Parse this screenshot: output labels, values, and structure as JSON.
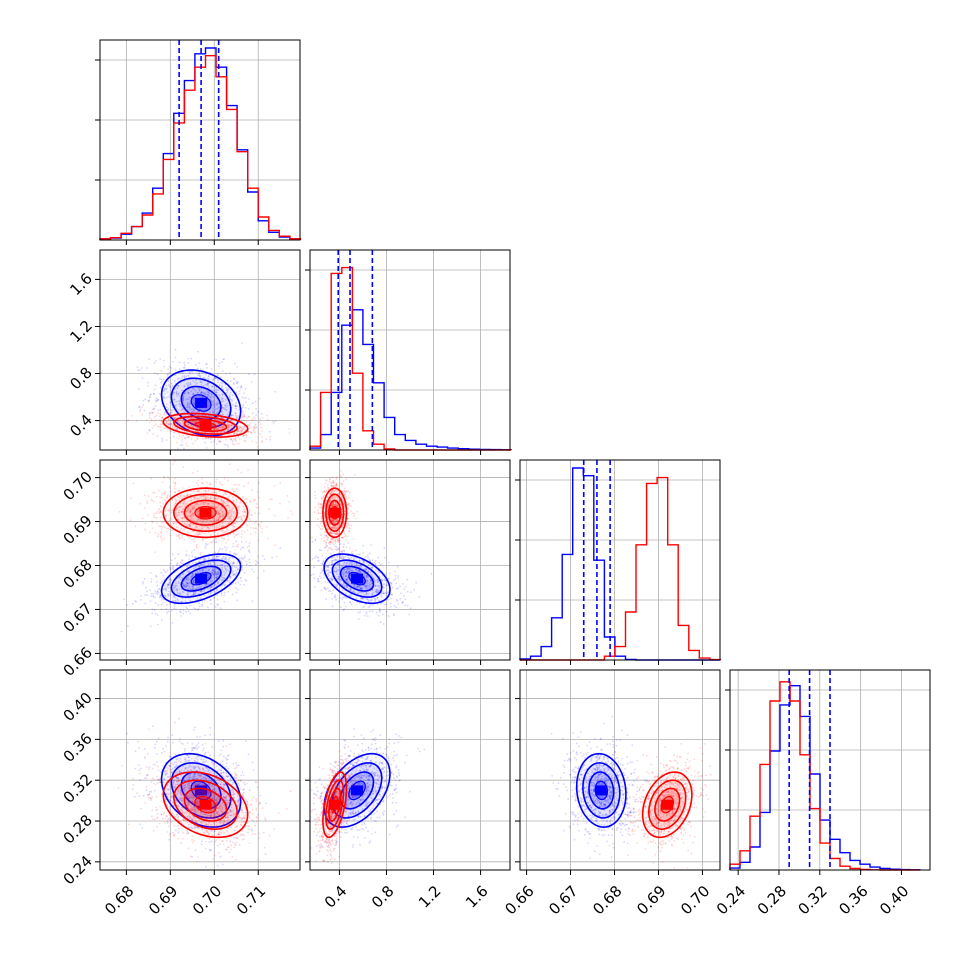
{
  "chart_data": {
    "type": "corner",
    "parameters": 4,
    "grid": true,
    "colors": {
      "series_a": "#0000ff",
      "series_b": "#ff0000",
      "grid": "#b0b0b0"
    },
    "series": [
      {
        "color": "#0000ff",
        "means": [
          0.697,
          0.55,
          0.677,
          0.31
        ],
        "sigmas": [
          0.0045,
          0.14,
          0.0028,
          0.018
        ],
        "correlations": [
          [
            0,
            1,
            -0.25
          ],
          [
            0,
            2,
            0.5
          ],
          [
            0,
            3,
            -0.3
          ],
          [
            1,
            2,
            -0.45
          ],
          [
            1,
            3,
            0.45
          ],
          [
            2,
            3,
            -0.1
          ]
        ],
        "quantiles": [
          [
            0.692,
            0.697,
            0.701
          ],
          [
            0.39,
            0.49,
            0.68
          ],
          [
            0.673,
            0.676,
            0.679
          ],
          [
            0.29,
            0.31,
            0.33
          ]
        ]
      },
      {
        "color": "#ff0000",
        "means": [
          0.698,
          0.36,
          0.692,
          0.296
        ],
        "sigmas": [
          0.0048,
          0.05,
          0.0028,
          0.016
        ],
        "correlations": [
          [
            0,
            1,
            -0.3
          ],
          [
            0,
            2,
            0.0
          ],
          [
            0,
            3,
            -0.3
          ],
          [
            1,
            2,
            0.0
          ],
          [
            1,
            3,
            0.5
          ],
          [
            2,
            3,
            0.3
          ]
        ]
      }
    ],
    "axis_ranges": [
      [
        0.674,
        0.7195
      ],
      [
        0.15,
        1.85
      ],
      [
        0.6585,
        0.704
      ],
      [
        0.232,
        0.428
      ]
    ],
    "ticks": [
      {
        "values": [
          0.68,
          0.69,
          0.7,
          0.71
        ],
        "labels": [
          "0.68",
          "0.69",
          "0.70",
          "0.71"
        ]
      },
      {
        "values": [
          0.4,
          0.8,
          1.2,
          1.6
        ],
        "labels": [
          "0.4",
          "0.8",
          "1.2",
          "1.6"
        ]
      },
      {
        "values": [
          0.66,
          0.67,
          0.68,
          0.69,
          0.7
        ],
        "labels": [
          "0.66",
          "0.67",
          "0.68",
          "0.69",
          "0.70"
        ]
      },
      {
        "values": [
          0.24,
          0.28,
          0.32,
          0.36,
          0.4
        ],
        "labels": [
          "0.24",
          "0.28",
          "0.32",
          "0.36",
          "0.40"
        ]
      }
    ],
    "histograms": [
      {
        "bins": [
          0.674,
          0.6764,
          0.6788,
          0.6812,
          0.6836,
          0.686,
          0.6884,
          0.6908,
          0.6932,
          0.6956,
          0.698,
          0.7004,
          0.7028,
          0.7052,
          0.7076,
          0.71,
          0.7124,
          0.7148,
          0.7172,
          0.7196
        ],
        "series_a": [
          0.005,
          0.01,
          0.03,
          0.07,
          0.14,
          0.27,
          0.45,
          0.66,
          0.83,
          0.97,
          1.0,
          0.9,
          0.7,
          0.47,
          0.25,
          0.1,
          0.04,
          0.015,
          0.005
        ],
        "series_b": [
          0.006,
          0.012,
          0.035,
          0.07,
          0.13,
          0.24,
          0.42,
          0.61,
          0.78,
          0.9,
          0.96,
          0.85,
          0.68,
          0.46,
          0.27,
          0.12,
          0.05,
          0.02,
          0.006
        ]
      },
      {
        "bins": [
          0.15,
          0.24,
          0.33,
          0.42,
          0.51,
          0.6,
          0.69,
          0.78,
          0.87,
          0.96,
          1.05,
          1.14,
          1.23,
          1.32,
          1.41,
          1.5,
          1.59,
          1.68,
          1.77,
          1.86
        ],
        "series_a": [
          0.01,
          0.08,
          0.3,
          0.65,
          0.73,
          0.55,
          0.35,
          0.17,
          0.08,
          0.05,
          0.03,
          0.02,
          0.015,
          0.01,
          0.007,
          0.004,
          0.003,
          0.002,
          0.001
        ],
        "series_b": [
          0.02,
          0.3,
          0.92,
          0.95,
          0.4,
          0.1,
          0.03,
          0.005,
          0,
          0,
          0,
          0,
          0,
          0,
          0,
          0,
          0,
          0,
          0
        ]
      },
      {
        "bins": [
          0.6585,
          0.6609,
          0.6633,
          0.6657,
          0.6681,
          0.6705,
          0.6729,
          0.6753,
          0.6777,
          0.6801,
          0.6825,
          0.6849,
          0.6873,
          0.6897,
          0.6921,
          0.6945,
          0.6969,
          0.6993,
          0.7017,
          0.7041
        ],
        "series_a": [
          0.005,
          0.02,
          0.07,
          0.22,
          0.55,
          1.0,
          0.96,
          0.52,
          0.12,
          0.02,
          0.003,
          0,
          0,
          0,
          0,
          0,
          0,
          0,
          0
        ],
        "series_b": [
          0,
          0,
          0,
          0,
          0,
          0,
          0,
          0,
          0.02,
          0.07,
          0.25,
          0.6,
          0.92,
          0.95,
          0.6,
          0.18,
          0.05,
          0.01,
          0.002
        ]
      },
      {
        "bins": [
          0.232,
          0.2418,
          0.2516,
          0.2614,
          0.2712,
          0.281,
          0.2908,
          0.3006,
          0.3104,
          0.3202,
          0.33,
          0.3398,
          0.3496,
          0.3594,
          0.3692,
          0.379,
          0.3888,
          0.3986,
          0.4084,
          0.4182
        ],
        "series_a": [
          0.01,
          0.04,
          0.12,
          0.3,
          0.62,
          0.86,
          0.96,
          0.8,
          0.5,
          0.26,
          0.16,
          0.09,
          0.05,
          0.03,
          0.015,
          0.008,
          0.004,
          0.002,
          0.001
        ],
        "series_b": [
          0.03,
          0.1,
          0.28,
          0.55,
          0.88,
          0.98,
          0.88,
          0.6,
          0.32,
          0.14,
          0.06,
          0.02,
          0.008,
          0.003,
          0.001,
          0,
          0,
          0,
          0
        ]
      }
    ]
  }
}
